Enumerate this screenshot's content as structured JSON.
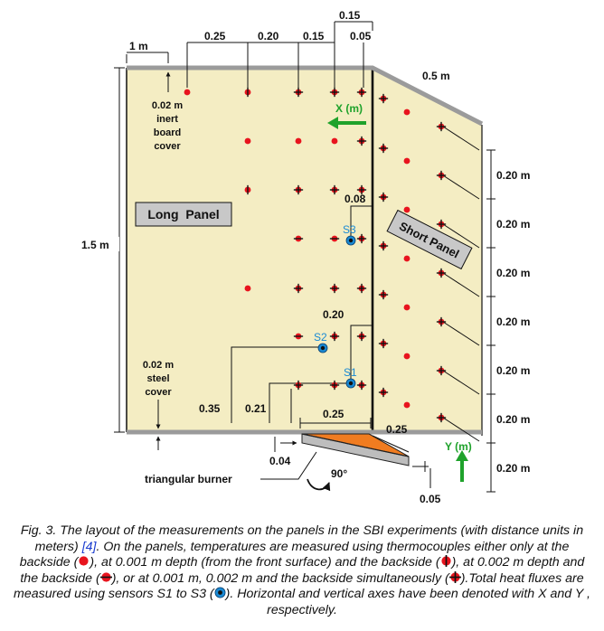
{
  "colors": {
    "panel": "#f4edc3",
    "frame": "#9b9b9b",
    "thermocouple": "#e8141e",
    "sensor_blue": "#1a8ad4",
    "axis_green": "#1fa22b",
    "burner": "#f07c20",
    "sensor_label": "#1a8ad4",
    "caption_ref": "#1a3ccf"
  },
  "labels": {
    "long_panel": "Long  Panel",
    "short_panel": "Short Panel",
    "inert_board": [
      "0.02 m",
      "inert",
      "board",
      "cover"
    ],
    "steel_cover": [
      "0.02 m",
      "steel",
      "cover"
    ],
    "burner": "triangular burner",
    "angle": "90°",
    "x_axis": "X (m)",
    "y_axis": "Y (m)",
    "sensors": [
      "S1",
      "S2",
      "S3"
    ]
  },
  "dimensions": {
    "top_1m": "1 m",
    "top_025": "0.25",
    "top_020": "0.20",
    "top_015_a": "0.15",
    "top_015_b": "0.15",
    "top_005": "0.05",
    "short_05m": "0.5 m",
    "height_15m": "1.5 m",
    "d_008": "0.08",
    "d_020": "0.20",
    "d_035": "0.35",
    "d_021": "0.21",
    "d_025_bottom": "0.25",
    "d_004": "0.04",
    "d_025_burner": "0.25",
    "d_005_bottom": "0.05",
    "right_spacings": [
      "0.20 m",
      "0.20 m",
      "0.20 m",
      "0.20 m",
      "0.20 m",
      "0.20 m",
      "0.20 m"
    ]
  },
  "caption": {
    "part1": "Fig. 3. The layout of the measurements on the panels in the SBI experiments (with distance units in meters) ",
    "ref": "[4]",
    "part2": ". On the panels, temperatures are measured using thermocouples either only at the backside (",
    "part3": "), at 0.001 m depth (from the front surface) and the backside (",
    "part4": "), at 0.002 m depth and the backside (",
    "part5": "), or at 0.001 m, 0.002 m and the backside simultaneously (",
    "part6": ").Total heat fluxes are measured using sensors S1 to S3 (",
    "part7": "). Horizontal and vertical axes have been denoted with X and Y , respectively."
  }
}
